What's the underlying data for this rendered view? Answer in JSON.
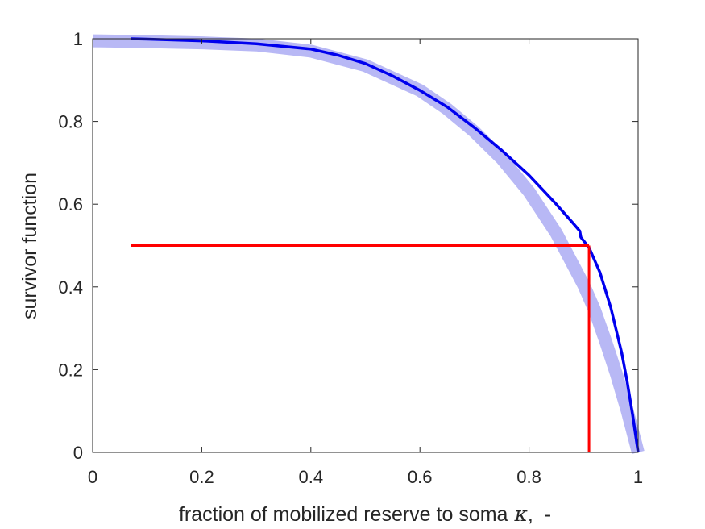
{
  "chart_data": {
    "type": "line",
    "xlabel": "fraction of mobilized reserve to soma",
    "xlabel_symbol": "κ",
    "xlabel_unit": ",  -",
    "ylabel": "survivor function",
    "xlim": [
      0,
      1
    ],
    "ylim": [
      0,
      1
    ],
    "x_ticks": [
      0,
      0.2,
      0.4,
      0.6,
      0.8,
      1
    ],
    "x_tick_labels": [
      "0",
      "0.2",
      "0.4",
      "0.6",
      "0.8",
      "1"
    ],
    "y_ticks": [
      0,
      0.2,
      0.4,
      0.6,
      0.8,
      1
    ],
    "y_tick_labels": [
      "0",
      "0.2",
      "0.4",
      "0.6",
      "0.8",
      "1"
    ],
    "grid": false,
    "box": true,
    "series": [
      {
        "role": "fitted curve (band)",
        "color": "#b8b8f5",
        "x": [
          0,
          0.1,
          0.2,
          0.3,
          0.4,
          0.5,
          0.6,
          0.65,
          0.7,
          0.75,
          0.8,
          0.85,
          0.9,
          0.92,
          0.94,
          0.96,
          0.98,
          1.0
        ],
        "y": [
          0.995,
          0.993,
          0.99,
          0.985,
          0.97,
          0.935,
          0.875,
          0.83,
          0.775,
          0.71,
          0.63,
          0.53,
          0.405,
          0.345,
          0.27,
          0.19,
          0.1,
          0.0
        ]
      },
      {
        "role": "empirical survivor function",
        "color": "#0000ee",
        "x": [
          0.07,
          0.1,
          0.2,
          0.3,
          0.4,
          0.45,
          0.5,
          0.55,
          0.6,
          0.65,
          0.7,
          0.75,
          0.8,
          0.85,
          0.88,
          0.893,
          0.895,
          0.91,
          0.93,
          0.95,
          0.97,
          0.98,
          0.99,
          1.0
        ],
        "y": [
          1.0,
          0.999,
          0.995,
          0.988,
          0.975,
          0.96,
          0.94,
          0.91,
          0.875,
          0.835,
          0.785,
          0.73,
          0.67,
          0.6,
          0.555,
          0.535,
          0.52,
          0.495,
          0.435,
          0.35,
          0.24,
          0.17,
          0.09,
          0.0
        ]
      }
    ],
    "annotations": [
      {
        "type": "horizontal-line",
        "color": "#ff0000",
        "y": 0.5,
        "x_from": 0.07,
        "x_to": 0.91
      },
      {
        "type": "vertical-line",
        "color": "#ff0000",
        "x": 0.91,
        "y_from": 0,
        "y_to": 0.5
      }
    ]
  }
}
